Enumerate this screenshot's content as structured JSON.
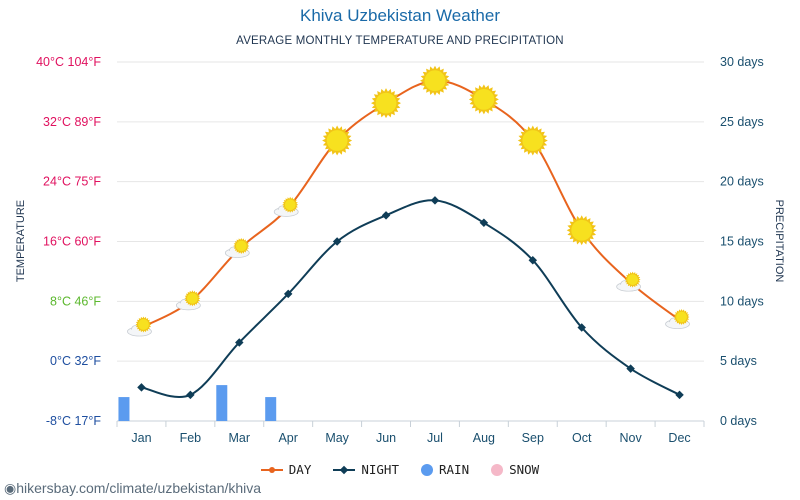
{
  "header": {
    "title": "Khiva Uzbekistan Weather",
    "subtitle": "AVERAGE MONTHLY TEMPERATURE AND PRECIPITATION"
  },
  "footer": {
    "source": "hikersbay.com/climate/uzbekistan/khiva"
  },
  "legend": {
    "day": "DAY",
    "night": "NIGHT",
    "rain": "RAIN",
    "snow": "SNOW"
  },
  "colors": {
    "day": "#e8641e",
    "night": "#0f3d57",
    "rain": "#5b9bef",
    "snow": "#f5b8c8",
    "sun": "#f7e11f",
    "grid": "#e6e6e6"
  },
  "chart_data": {
    "type": "line",
    "title": "Khiva Uzbekistan Weather",
    "subtitle": "AVERAGE MONTHLY TEMPERATURE AND PRECIPITATION",
    "categories": [
      "Jan",
      "Feb",
      "Mar",
      "Apr",
      "May",
      "Jun",
      "Jul",
      "Aug",
      "Sep",
      "Oct",
      "Nov",
      "Dec"
    ],
    "ylabel": "TEMPERATURE",
    "ylabel_right": "PRECIPITATION",
    "ylim": [
      -8,
      40
    ],
    "ylim_right": [
      0,
      30
    ],
    "left_ticks": [
      {
        "value": 40,
        "label": "40°C 104°F",
        "color": "#e0115f"
      },
      {
        "value": 32,
        "label": "32°C 89°F",
        "color": "#e0115f"
      },
      {
        "value": 24,
        "label": "24°C 75°F",
        "color": "#e0115f"
      },
      {
        "value": 16,
        "label": "16°C 60°F",
        "color": "#e0115f"
      },
      {
        "value": 8,
        "label": "8°C 46°F",
        "color": "#5cb82e"
      },
      {
        "value": 0,
        "label": "0°C 32°F",
        "color": "#1f4fa0"
      },
      {
        "value": -8,
        "label": "-8°C 17°F",
        "color": "#1f4fa0"
      }
    ],
    "right_ticks": [
      {
        "value": 30,
        "label": "30 days"
      },
      {
        "value": 25,
        "label": "25 days"
      },
      {
        "value": 20,
        "label": "20 days"
      },
      {
        "value": 15,
        "label": "15 days"
      },
      {
        "value": 10,
        "label": "10 days"
      },
      {
        "value": 5,
        "label": "5 days"
      },
      {
        "value": 0,
        "label": "0 days"
      }
    ],
    "series": [
      {
        "name": "DAY",
        "values": [
          4.5,
          8,
          15,
          20.5,
          29.5,
          34.5,
          37.5,
          35,
          29.5,
          17.5,
          10.5,
          5.5
        ]
      },
      {
        "name": "NIGHT",
        "values": [
          -3.5,
          -4.5,
          2.5,
          9,
          16,
          19.5,
          21.5,
          18.5,
          13.5,
          4.5,
          -1,
          -4.5
        ]
      },
      {
        "name": "RAIN",
        "unit": "days",
        "values": [
          2,
          0,
          3,
          2,
          0,
          0,
          0,
          0,
          0,
          0,
          0,
          0
        ]
      },
      {
        "name": "SNOW",
        "unit": "days",
        "values": [
          0,
          0,
          0,
          0,
          0,
          0,
          0,
          0,
          0,
          0,
          0,
          0
        ]
      }
    ],
    "weather_icons": [
      "partly-cloudy",
      "partly-cloudy",
      "partly-cloudy",
      "partly-cloudy",
      "sunny",
      "sunny",
      "sunny",
      "sunny",
      "sunny",
      "sunny",
      "partly-cloudy",
      "partly-cloudy"
    ]
  }
}
